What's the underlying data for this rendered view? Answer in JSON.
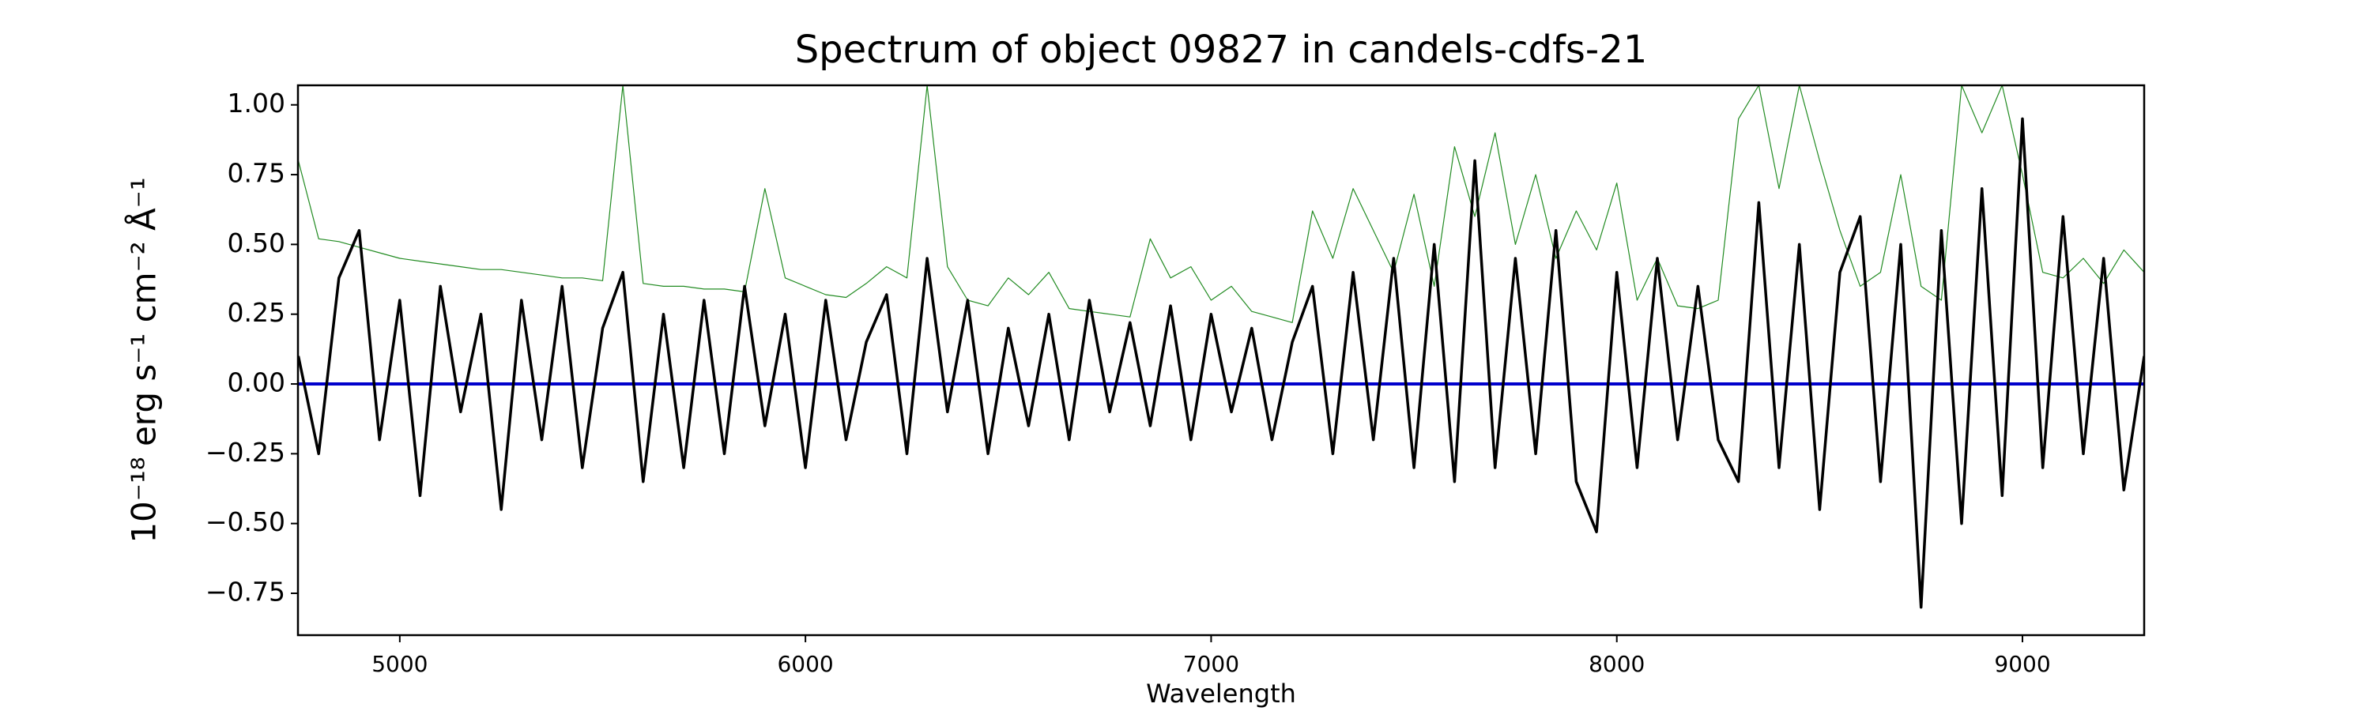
{
  "chart_data": {
    "type": "line",
    "title": "Spectrum of object 09827 in candels-cdfs-21",
    "xlabel": "Wavelength",
    "ylabel": "10⁻¹⁸ erg s⁻¹ cm⁻² Å⁻¹",
    "xlim": [
      4749,
      9300
    ],
    "ylim": [
      -0.9,
      1.07
    ],
    "xticks": [
      5000,
      6000,
      7000,
      8000,
      9000
    ],
    "yticks": [
      {
        "value": -0.75,
        "label": "−0.75"
      },
      {
        "value": -0.5,
        "label": "−0.50"
      },
      {
        "value": -0.25,
        "label": "−0.25"
      },
      {
        "value": 0,
        "label": "0.00"
      },
      {
        "value": 0.25,
        "label": "0.25"
      },
      {
        "value": 0.5,
        "label": "0.50"
      },
      {
        "value": 0.75,
        "label": "0.75"
      },
      {
        "value": 1,
        "label": "1.00"
      }
    ],
    "x": [
      4750,
      4800,
      4850,
      4900,
      4950,
      5000,
      5050,
      5100,
      5150,
      5200,
      5250,
      5300,
      5350,
      5400,
      5450,
      5500,
      5550,
      5600,
      5650,
      5700,
      5750,
      5800,
      5850,
      5900,
      5950,
      6000,
      6050,
      6100,
      6150,
      6200,
      6250,
      6300,
      6350,
      6400,
      6450,
      6500,
      6550,
      6600,
      6650,
      6700,
      6750,
      6800,
      6850,
      6900,
      6950,
      7000,
      7050,
      7100,
      7150,
      7200,
      7250,
      7300,
      7350,
      7400,
      7450,
      7500,
      7550,
      7600,
      7650,
      7700,
      7750,
      7800,
      7850,
      7900,
      7950,
      8000,
      8050,
      8100,
      8150,
      8200,
      8250,
      8300,
      8350,
      8400,
      8450,
      8500,
      8550,
      8600,
      8650,
      8700,
      8750,
      8800,
      8850,
      8900,
      8950,
      9000,
      9050,
      9100,
      9150,
      9200,
      9250,
      9300
    ],
    "series": [
      {
        "color": "#228b22",
        "width": 1.2,
        "values": [
          0.8,
          0.52,
          0.51,
          0.49,
          0.47,
          0.45,
          0.44,
          0.43,
          0.42,
          0.41,
          0.41,
          0.4,
          0.39,
          0.38,
          0.38,
          0.37,
          1.07,
          0.36,
          0.35,
          0.35,
          0.34,
          0.34,
          0.33,
          0.7,
          0.38,
          0.35,
          0.32,
          0.31,
          0.36,
          0.42,
          0.38,
          1.07,
          0.42,
          0.3,
          0.28,
          0.38,
          0.32,
          0.4,
          0.27,
          0.26,
          0.25,
          0.24,
          0.52,
          0.38,
          0.42,
          0.3,
          0.35,
          0.26,
          0.24,
          0.22,
          0.62,
          0.45,
          0.7,
          0.55,
          0.4,
          0.68,
          0.35,
          0.85,
          0.6,
          0.9,
          0.5,
          0.75,
          0.45,
          0.62,
          0.48,
          0.72,
          0.3,
          0.45,
          0.28,
          0.27,
          0.3,
          0.95,
          1.07,
          0.7,
          1.07,
          0.8,
          0.55,
          0.35,
          0.4,
          0.75,
          0.35,
          0.3,
          1.07,
          0.9,
          1.07,
          0.75,
          0.4,
          0.38,
          0.45,
          0.36,
          0.48,
          0.4
        ]
      },
      {
        "color": "#0000cc",
        "width": 4,
        "values": [
          0,
          0,
          0,
          0,
          0,
          0,
          0,
          0,
          0,
          0,
          0,
          0,
          0,
          0,
          0,
          0,
          0,
          0,
          0,
          0,
          0,
          0,
          0,
          0,
          0,
          0,
          0,
          0,
          0,
          0,
          0,
          0,
          0,
          0,
          0,
          0,
          0,
          0,
          0,
          0,
          0,
          0,
          0,
          0,
          0,
          0,
          0,
          0,
          0,
          0,
          0,
          0,
          0,
          0,
          0,
          0,
          0,
          0,
          0,
          0,
          0,
          0,
          0,
          0,
          0,
          0,
          0,
          0,
          0,
          0,
          0,
          0,
          0,
          0,
          0,
          0,
          0,
          0,
          0,
          0,
          0,
          0,
          0,
          0,
          0,
          0,
          0,
          0,
          0,
          0,
          0,
          0
        ]
      },
      {
        "color": "#000000",
        "width": 3.5,
        "values": [
          0.1,
          -0.25,
          0.38,
          0.55,
          -0.2,
          0.3,
          -0.4,
          0.35,
          -0.1,
          0.25,
          -0.45,
          0.3,
          -0.2,
          0.35,
          -0.3,
          0.2,
          0.4,
          -0.35,
          0.25,
          -0.3,
          0.3,
          -0.25,
          0.35,
          -0.15,
          0.25,
          -0.3,
          0.3,
          -0.2,
          0.15,
          0.32,
          -0.25,
          0.45,
          -0.1,
          0.3,
          -0.25,
          0.2,
          -0.15,
          0.25,
          -0.2,
          0.3,
          -0.1,
          0.22,
          -0.15,
          0.28,
          -0.2,
          0.25,
          -0.1,
          0.2,
          -0.2,
          0.15,
          0.35,
          -0.25,
          0.4,
          -0.2,
          0.45,
          -0.3,
          0.5,
          -0.35,
          0.8,
          -0.3,
          0.45,
          -0.25,
          0.55,
          -0.35,
          -0.53,
          0.4,
          -0.3,
          0.45,
          -0.2,
          0.35,
          -0.2,
          -0.35,
          0.65,
          -0.3,
          0.5,
          -0.45,
          0.4,
          0.6,
          -0.35,
          0.5,
          -0.8,
          0.55,
          -0.5,
          0.7,
          -0.4,
          0.95,
          -0.3,
          0.6,
          -0.25,
          0.45,
          -0.38,
          0.1
        ]
      }
    ]
  }
}
